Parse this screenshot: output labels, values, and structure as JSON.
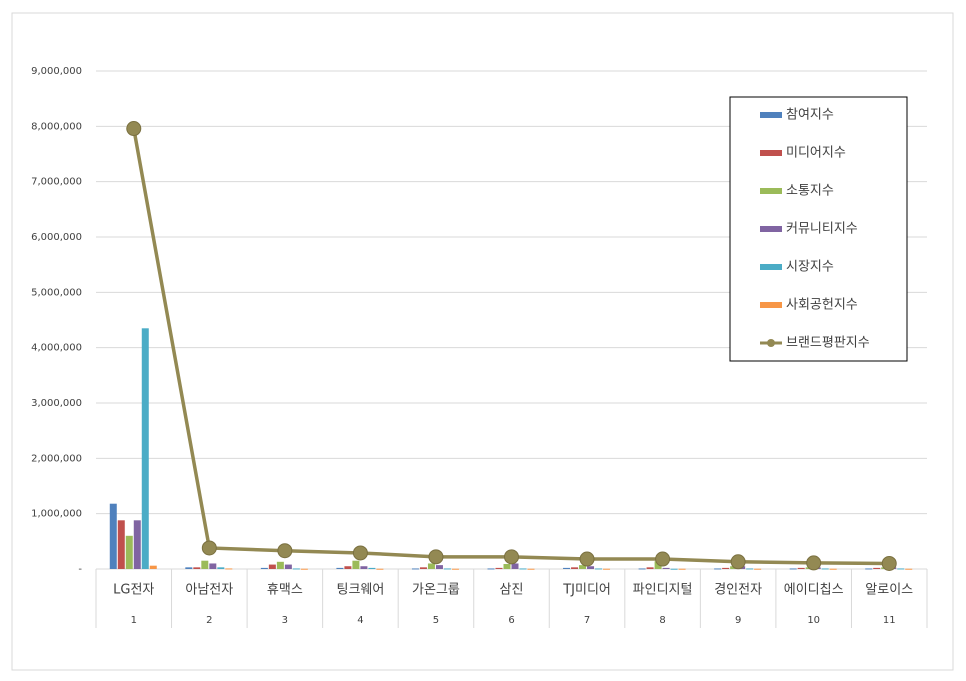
{
  "chart_data": {
    "type": "bar",
    "categories": [
      "LG전자",
      "아남전자",
      "휴맥스",
      "팅크웨어",
      "가온그룹",
      "삼진",
      "TJ미디어",
      "파인디지털",
      "경인전자",
      "에이디칩스",
      "알로이스"
    ],
    "ranks": [
      1,
      2,
      3,
      4,
      5,
      6,
      7,
      8,
      9,
      10,
      11
    ],
    "series": [
      {
        "name": "참여지수",
        "color": "#4f81bd",
        "values": [
          1180000,
          30000,
          20000,
          20000,
          10000,
          10000,
          20000,
          10000,
          10000,
          10000,
          10000
        ]
      },
      {
        "name": "미디어지수",
        "color": "#c0504d",
        "values": [
          880000,
          30000,
          80000,
          50000,
          30000,
          20000,
          30000,
          30000,
          20000,
          20000,
          20000
        ]
      },
      {
        "name": "소통지수",
        "color": "#9bbb59",
        "values": [
          600000,
          150000,
          130000,
          150000,
          100000,
          90000,
          70000,
          140000,
          50000,
          30000,
          30000
        ]
      },
      {
        "name": "커뮤니티지수",
        "color": "#8064a2",
        "values": [
          880000,
          100000,
          80000,
          50000,
          70000,
          100000,
          50000,
          20000,
          50000,
          30000,
          30000
        ]
      },
      {
        "name": "시장지수",
        "color": "#4bacc6",
        "values": [
          4350000,
          30000,
          10000,
          20000,
          10000,
          10000,
          10000,
          5000,
          10000,
          10000,
          10000
        ]
      },
      {
        "name": "사회공헌지수",
        "color": "#f79646",
        "values": [
          60000,
          10000,
          5000,
          5000,
          5000,
          5000,
          5000,
          5000,
          5000,
          5000,
          5000
        ]
      },
      {
        "name": "브랜드평판지수",
        "color": "#938953",
        "type": "line",
        "values": [
          7960000,
          380000,
          330000,
          290000,
          220000,
          220000,
          180000,
          180000,
          130000,
          110000,
          100000
        ]
      }
    ],
    "ylim": [
      0,
      9000000
    ],
    "yticks": [
      {
        "value": 0,
        "label": "-"
      },
      {
        "value": 1000000,
        "label": "1,000,000"
      },
      {
        "value": 2000000,
        "label": "2,000,000"
      },
      {
        "value": 3000000,
        "label": "3,000,000"
      },
      {
        "value": 4000000,
        "label": "4,000,000"
      },
      {
        "value": 5000000,
        "label": "5,000,000"
      },
      {
        "value": 6000000,
        "label": "6,000,000"
      },
      {
        "value": 7000000,
        "label": "7,000,000"
      },
      {
        "value": 8000000,
        "label": "8,000,000"
      },
      {
        "value": 9000000,
        "label": "9,000,000"
      }
    ],
    "grid": true,
    "legend": "upper right"
  }
}
